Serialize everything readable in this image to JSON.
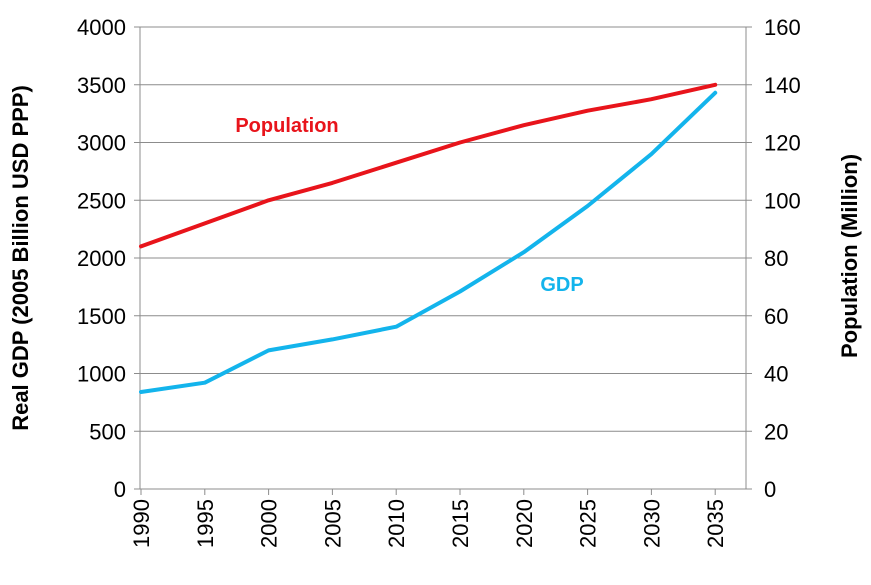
{
  "chart_data": {
    "type": "line",
    "categories": [
      "1990",
      "1995",
      "2000",
      "2005",
      "2010",
      "2015",
      "2020",
      "2025",
      "2030",
      "2035"
    ],
    "series": [
      {
        "name": "Population",
        "axis": "right",
        "color": "#e8141b",
        "values": [
          84,
          92,
          100,
          106,
          113,
          120,
          126,
          131,
          135,
          140
        ]
      },
      {
        "name": "GDP",
        "axis": "left",
        "color": "#13b4ec",
        "values": [
          840,
          920,
          1200,
          1295,
          1405,
          1710,
          2050,
          2450,
          2900,
          3430
        ]
      }
    ],
    "ylabel": "Real GDP (2005 Billion USD PPP)",
    "y2label": "Population (Million)",
    "ylim": [
      0,
      4000
    ],
    "y2lim": [
      0,
      160
    ],
    "yticks": [
      "0",
      "500",
      "1000",
      "1500",
      "2000",
      "2500",
      "3000",
      "3500",
      "4000"
    ],
    "y2ticks": [
      "0",
      "20",
      "40",
      "60",
      "80",
      "100",
      "120",
      "140",
      "160"
    ],
    "grid": true,
    "legend": "inline labels"
  }
}
